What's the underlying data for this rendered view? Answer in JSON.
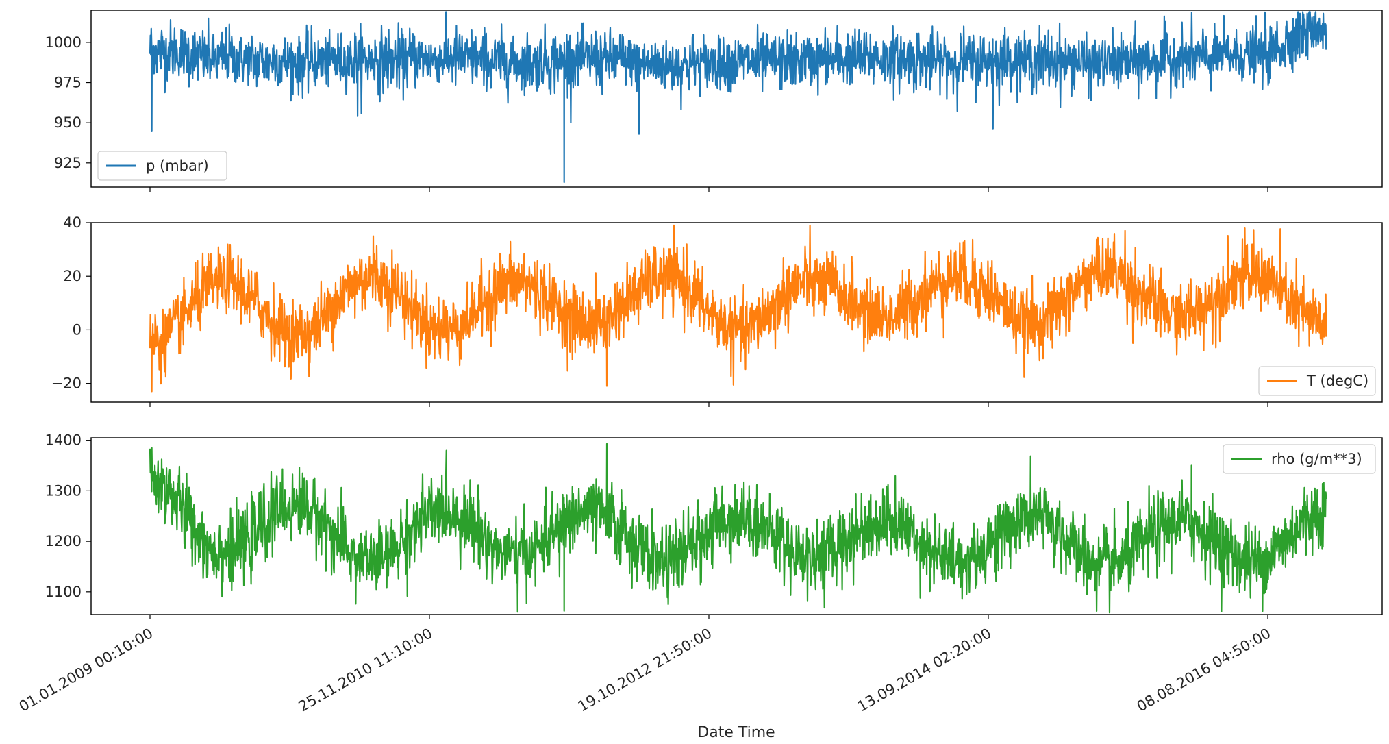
{
  "chart_data": {
    "type": "line",
    "layout": "3 vertically stacked subplots sharing the x axis",
    "xlabel": "Date Time",
    "x_ticks": [
      "01.01.2009 00:10:00",
      "25.11.2010 11:10:00",
      "19.10.2012 21:50:00",
      "13.09.2014 02:20:00",
      "08.08.2016 04:50:00"
    ],
    "x_range": [
      "01.01.2009",
      "31.12.2016"
    ],
    "grid": false,
    "panels": [
      {
        "series_name": "p (mbar)",
        "color": "#1f77b4",
        "legend_position": "lower-left",
        "ylim": [
          910,
          1020
        ],
        "y_ticks": [
          1000,
          975,
          950,
          925
        ],
        "approx_samples": {
          "x": [
            "01.01.2009",
            "01.07.2009",
            "01.01.2010",
            "01.07.2010",
            "01.01.2011",
            "01.07.2011",
            "01.01.2012",
            "01.07.2012",
            "01.01.2013",
            "01.07.2013",
            "01.01.2014",
            "01.07.2014",
            "01.01.2015",
            "01.07.2015",
            "01.01.2016",
            "01.07.2016",
            "31.12.2016"
          ],
          "y": [
            995,
            990,
            988,
            989,
            990,
            987,
            990,
            986,
            988,
            989,
            990,
            988,
            989,
            987,
            990,
            992,
            1010
          ]
        },
        "notable_extremes": [
          {
            "x": "06.01.2009",
            "y": 945
          },
          {
            "x": "01.06.2010",
            "y": 954
          },
          {
            "x": "27.10.2011",
            "y": 913
          },
          {
            "x": "30.04.2012",
            "y": 943
          },
          {
            "x": "26.09.2014",
            "y": 946
          },
          {
            "x": "01.12.2016",
            "y": 1016
          }
        ]
      },
      {
        "series_name": "T (degC)",
        "color": "#ff7f0e",
        "legend_position": "lower-right",
        "ylim": [
          -27,
          40
        ],
        "y_ticks": [
          40,
          20,
          0,
          -20
        ],
        "approx_samples": {
          "x": [
            "01.01.2009",
            "01.07.2009",
            "01.01.2010",
            "01.07.2010",
            "01.01.2011",
            "01.07.2011",
            "01.01.2012",
            "01.07.2012",
            "01.01.2013",
            "01.07.2013",
            "01.01.2014",
            "01.07.2014",
            "01.01.2015",
            "01.07.2015",
            "01.01.2016",
            "01.07.2016",
            "31.12.2016"
          ],
          "y": [
            -5,
            18,
            -2,
            20,
            0,
            18,
            2,
            20,
            0,
            18,
            5,
            20,
            3,
            22,
            5,
            20,
            2
          ]
        },
        "notable_extremes": [
          {
            "x": "06.01.2009",
            "y": -23
          },
          {
            "x": "10.07.2010",
            "y": 35
          },
          {
            "x": "10.02.2012",
            "y": -21
          },
          {
            "x": "20.08.2015",
            "y": 37
          }
        ]
      },
      {
        "series_name": "rho (g/m**3)",
        "color": "#2ca02c",
        "legend_position": "upper-right",
        "ylim": [
          1055,
          1405
        ],
        "y_ticks": [
          1400,
          1300,
          1200,
          1100
        ],
        "approx_samples": {
          "x": [
            "01.01.2009",
            "01.07.2009",
            "01.01.2010",
            "01.07.2010",
            "01.01.2011",
            "01.07.2011",
            "01.01.2012",
            "01.07.2012",
            "01.01.2013",
            "01.07.2013",
            "01.01.2014",
            "01.07.2014",
            "01.01.2015",
            "01.07.2015",
            "01.01.2016",
            "01.07.2016",
            "31.12.2016"
          ],
          "y": [
            1320,
            1180,
            1270,
            1160,
            1260,
            1170,
            1260,
            1160,
            1250,
            1170,
            1240,
            1160,
            1250,
            1150,
            1240,
            1160,
            1260
          ]
        },
        "notable_extremes": [
          {
            "x": "06.01.2009",
            "y": 1385
          },
          {
            "x": "10.02.2012",
            "y": 1393
          },
          {
            "x": "27.10.2011",
            "y": 1062
          },
          {
            "x": "01.02.2016",
            "y": 1350
          }
        ]
      }
    ]
  }
}
